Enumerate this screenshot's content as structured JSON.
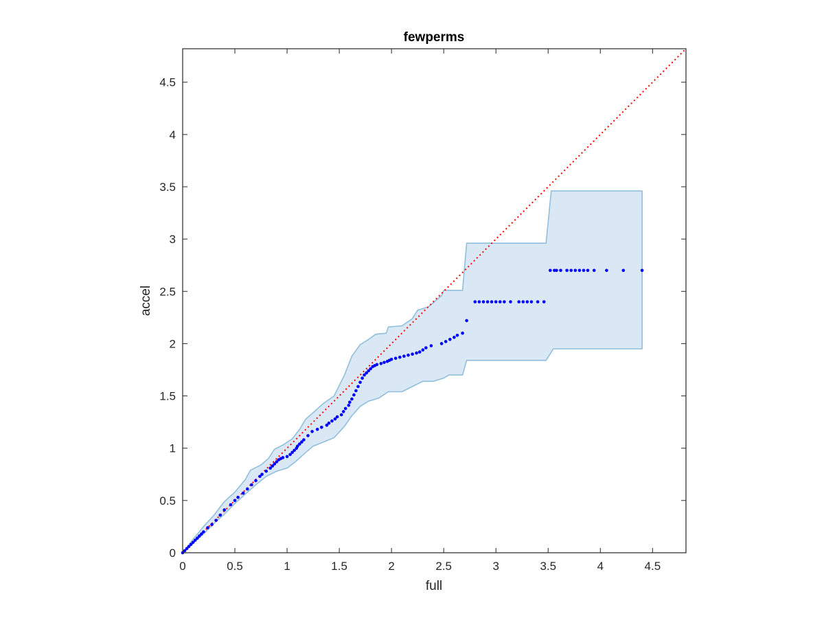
{
  "chart_data": {
    "type": "scatter",
    "title": "fewperms",
    "xlabel": "full",
    "ylabel": "accel",
    "xlim": [
      0,
      4.82
    ],
    "ylim": [
      0,
      4.82
    ],
    "xticks": [
      0,
      0.5,
      1,
      1.5,
      2,
      2.5,
      3,
      3.5,
      4,
      4.5
    ],
    "xtick_labels": [
      "0",
      "0.5",
      "1",
      "1.5",
      "2",
      "2.5",
      "3",
      "3.5",
      "4",
      "4.5"
    ],
    "yticks": [
      0,
      0.5,
      1,
      1.5,
      2,
      2.5,
      3,
      3.5,
      4,
      4.5
    ],
    "ytick_labels": [
      "0",
      "0.5",
      "1",
      "1.5",
      "2",
      "2.5",
      "3",
      "3.5",
      "4",
      "4.5"
    ],
    "grid": false,
    "colors": {
      "points": "#0000ff",
      "band_fill": "#d9e8f4",
      "band_edge": "#8fbfdc",
      "reference_line": "#ff0000",
      "axes": "#262626"
    },
    "reference_line": {
      "style": "dotted",
      "points": [
        [
          0,
          0
        ],
        [
          4.82,
          4.82
        ]
      ]
    },
    "band": {
      "upper": [
        [
          0,
          0
        ],
        [
          0.1,
          0.13
        ],
        [
          0.2,
          0.25
        ],
        [
          0.3,
          0.36
        ],
        [
          0.4,
          0.49
        ],
        [
          0.5,
          0.58
        ],
        [
          0.6,
          0.7
        ],
        [
          0.65,
          0.79
        ],
        [
          0.75,
          0.84
        ],
        [
          0.82,
          0.9
        ],
        [
          0.88,
          0.99
        ],
        [
          0.96,
          1.03
        ],
        [
          1.05,
          1.09
        ],
        [
          1.12,
          1.18
        ],
        [
          1.18,
          1.28
        ],
        [
          1.25,
          1.34
        ],
        [
          1.35,
          1.43
        ],
        [
          1.45,
          1.5
        ],
        [
          1.5,
          1.6
        ],
        [
          1.55,
          1.7
        ],
        [
          1.62,
          1.88
        ],
        [
          1.7,
          1.99
        ],
        [
          1.78,
          2.04
        ],
        [
          1.85,
          2.09
        ],
        [
          1.95,
          2.1
        ],
        [
          1.97,
          2.16
        ],
        [
          2.1,
          2.17
        ],
        [
          2.2,
          2.24
        ],
        [
          2.25,
          2.32
        ],
        [
          2.35,
          2.35
        ],
        [
          2.4,
          2.39
        ],
        [
          2.48,
          2.46
        ],
        [
          2.5,
          2.51
        ],
        [
          2.68,
          2.51
        ],
        [
          2.72,
          2.96
        ],
        [
          3.48,
          2.96
        ],
        [
          3.53,
          3.46
        ],
        [
          4.4,
          3.46
        ]
      ],
      "lower": [
        [
          0,
          0
        ],
        [
          0.1,
          0.09
        ],
        [
          0.2,
          0.18
        ],
        [
          0.3,
          0.28
        ],
        [
          0.4,
          0.37
        ],
        [
          0.5,
          0.47
        ],
        [
          0.6,
          0.56
        ],
        [
          0.7,
          0.65
        ],
        [
          0.8,
          0.73
        ],
        [
          0.9,
          0.78
        ],
        [
          1,
          0.81
        ],
        [
          1.08,
          0.87
        ],
        [
          1.18,
          0.96
        ],
        [
          1.25,
          1.02
        ],
        [
          1.35,
          1.06
        ],
        [
          1.45,
          1.1
        ],
        [
          1.55,
          1.21
        ],
        [
          1.62,
          1.31
        ],
        [
          1.7,
          1.4
        ],
        [
          1.78,
          1.45
        ],
        [
          1.88,
          1.48
        ],
        [
          1.97,
          1.54
        ],
        [
          2.1,
          1.54
        ],
        [
          2.2,
          1.59
        ],
        [
          2.3,
          1.64
        ],
        [
          2.4,
          1.64
        ],
        [
          2.5,
          1.67
        ],
        [
          2.55,
          1.7
        ],
        [
          2.68,
          1.7
        ],
        [
          2.72,
          1.84
        ],
        [
          3.48,
          1.84
        ],
        [
          3.55,
          1.95
        ],
        [
          4.4,
          1.95
        ]
      ]
    },
    "x": [
      0,
      0.02,
      0.04,
      0.06,
      0.08,
      0.1,
      0.12,
      0.14,
      0.16,
      0.18,
      0.2,
      0.24,
      0.28,
      0.32,
      0.36,
      0.4,
      0.46,
      0.5,
      0.53,
      0.58,
      0.62,
      0.66,
      0.7,
      0.74,
      0.76,
      0.8,
      0.84,
      0.86,
      0.88,
      0.9,
      0.92,
      0.94,
      0.96,
      1.0,
      1.03,
      1.05,
      1.07,
      1.09,
      1.1,
      1.12,
      1.14,
      1.16,
      1.2,
      1.24,
      1.29,
      1.33,
      1.38,
      1.4,
      1.43,
      1.46,
      1.48,
      1.52,
      1.54,
      1.56,
      1.59,
      1.6,
      1.62,
      1.64,
      1.66,
      1.68,
      1.7,
      1.72,
      1.74,
      1.76,
      1.78,
      1.8,
      1.82,
      1.84,
      1.86,
      1.9,
      1.93,
      1.96,
      1.98,
      2.0,
      2.04,
      2.08,
      2.12,
      2.16,
      2.2,
      2.24,
      2.27,
      2.3,
      2.33,
      2.38,
      2.48,
      2.52,
      2.56,
      2.6,
      2.63,
      2.68,
      2.72,
      2.8,
      2.84,
      2.88,
      2.92,
      2.96,
      3.0,
      3.04,
      3.08,
      3.14,
      3.22,
      3.26,
      3.3,
      3.34,
      3.4,
      3.46,
      3.52,
      3.56,
      3.58,
      3.62,
      3.68,
      3.72,
      3.76,
      3.8,
      3.84,
      3.88,
      3.94,
      4.06,
      4.22,
      4.4
    ],
    "y": [
      0,
      0.02,
      0.04,
      0.06,
      0.08,
      0.1,
      0.12,
      0.14,
      0.16,
      0.18,
      0.2,
      0.24,
      0.27,
      0.31,
      0.36,
      0.41,
      0.46,
      0.5,
      0.53,
      0.57,
      0.61,
      0.65,
      0.69,
      0.73,
      0.75,
      0.78,
      0.81,
      0.83,
      0.85,
      0.87,
      0.89,
      0.9,
      0.91,
      0.92,
      0.94,
      0.96,
      0.98,
      1.0,
      1.02,
      1.04,
      1.06,
      1.08,
      1.12,
      1.16,
      1.18,
      1.2,
      1.22,
      1.24,
      1.26,
      1.28,
      1.3,
      1.32,
      1.35,
      1.38,
      1.41,
      1.44,
      1.47,
      1.51,
      1.55,
      1.59,
      1.63,
      1.67,
      1.7,
      1.72,
      1.74,
      1.76,
      1.78,
      1.79,
      1.8,
      1.81,
      1.82,
      1.83,
      1.84,
      1.85,
      1.86,
      1.87,
      1.88,
      1.89,
      1.9,
      1.91,
      1.92,
      1.94,
      1.96,
      1.98,
      2.0,
      2.02,
      2.04,
      2.06,
      2.08,
      2.1,
      2.22,
      2.4,
      2.4,
      2.4,
      2.4,
      2.4,
      2.4,
      2.4,
      2.4,
      2.4,
      2.4,
      2.4,
      2.4,
      2.4,
      2.4,
      2.4,
      2.7,
      2.7,
      2.7,
      2.7,
      2.7,
      2.7,
      2.7,
      2.7,
      2.7,
      2.7,
      2.7,
      2.7,
      2.7,
      2.7
    ]
  }
}
